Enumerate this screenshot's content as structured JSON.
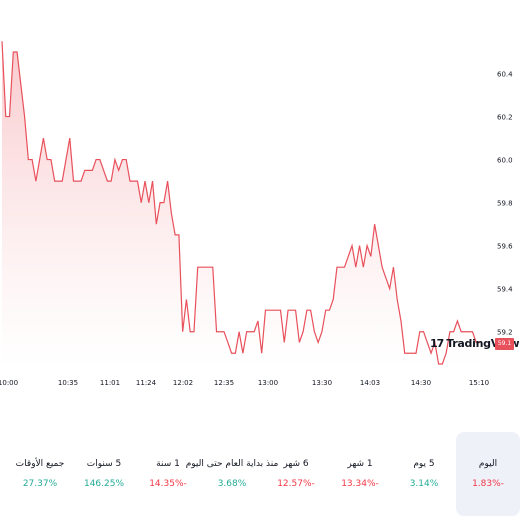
{
  "colors": {
    "line": "#e8505b",
    "fill_top": "#f9c9cc",
    "fill_bottom": "#ffffff",
    "positive": "#22ab94",
    "negative": "#f23645"
  },
  "watermark": {
    "logo": "17",
    "text": "TradingView"
  },
  "last_price_label": "59.1",
  "chart_data": {
    "type": "area",
    "y_ticks": [
      "60.4",
      "60.2",
      "60.0",
      "59.8",
      "59.6",
      "59.4",
      "59.2"
    ],
    "x_ticks": [
      "10:00",
      "10:35",
      "11:01",
      "11:24",
      "12:02",
      "12:35",
      "13:00",
      "13:30",
      "14:03",
      "14:30",
      "15:10"
    ],
    "ylim": [
      59.07,
      60.6
    ],
    "x": [
      0,
      1,
      2,
      3,
      4,
      5,
      6,
      7,
      8,
      9,
      10,
      11,
      12,
      13,
      14,
      15,
      16,
      17,
      18,
      19,
      20,
      21,
      22,
      23,
      24,
      25,
      26,
      27,
      28,
      29,
      30,
      31,
      32,
      33,
      34,
      35,
      36,
      37,
      38,
      39,
      40,
      41,
      42,
      43,
      44,
      45,
      46,
      47,
      48,
      49,
      50,
      51,
      52,
      53,
      54,
      55,
      56,
      57,
      58,
      59,
      60,
      61,
      62,
      63,
      64,
      65,
      66,
      67,
      68,
      69,
      70,
      71,
      72,
      73,
      74,
      75,
      76,
      77,
      78,
      79,
      80,
      81,
      82,
      83,
      84,
      85,
      86,
      87,
      88,
      89,
      90,
      91,
      92,
      93,
      94,
      95,
      96,
      97,
      98,
      99,
      100,
      101,
      102,
      103,
      104,
      105,
      106,
      107,
      108,
      109,
      110,
      111,
      112,
      113,
      114,
      115,
      116,
      117,
      118,
      119,
      120,
      121,
      122,
      123,
      124,
      125,
      126,
      127
    ],
    "values": [
      60.55,
      60.2,
      60.2,
      60.5,
      60.5,
      60.35,
      60.2,
      60.0,
      60.0,
      59.9,
      60.0,
      60.1,
      60.0,
      60.0,
      59.9,
      59.9,
      59.9,
      60.0,
      60.1,
      59.9,
      59.9,
      59.9,
      59.95,
      59.95,
      59.95,
      60.0,
      60.0,
      59.95,
      59.9,
      59.9,
      60.0,
      59.95,
      60.0,
      60.0,
      59.9,
      59.9,
      59.9,
      59.8,
      59.9,
      59.8,
      59.9,
      59.7,
      59.8,
      59.8,
      59.9,
      59.75,
      59.65,
      59.65,
      59.2,
      59.35,
      59.2,
      59.2,
      59.5,
      59.5,
      59.5,
      59.5,
      59.5,
      59.2,
      59.2,
      59.2,
      59.15,
      59.1,
      59.1,
      59.2,
      59.1,
      59.2,
      59.2,
      59.2,
      59.25,
      59.1,
      59.3,
      59.3,
      59.3,
      59.3,
      59.3,
      59.15,
      59.3,
      59.3,
      59.3,
      59.15,
      59.2,
      59.3,
      59.3,
      59.2,
      59.15,
      59.2,
      59.3,
      59.3,
      59.35,
      59.5,
      59.5,
      59.5,
      59.55,
      59.6,
      59.5,
      59.6,
      59.5,
      59.6,
      59.55,
      59.7,
      59.6,
      59.5,
      59.45,
      59.4,
      59.5,
      59.35,
      59.25,
      59.1,
      59.1,
      59.1,
      59.1,
      59.2,
      59.2,
      59.15,
      59.1,
      59.15,
      59.05,
      59.05,
      59.1,
      59.2,
      59.2,
      59.25,
      59.2,
      59.2,
      59.2,
      59.2,
      59.15,
      59.15
    ]
  },
  "performance": [
    {
      "label": "اليوم",
      "value": "1.83%-",
      "trend": "neg",
      "active": true
    },
    {
      "label": "5 يوم",
      "value": "3.14%",
      "trend": "pos",
      "active": false
    },
    {
      "label": "1 شهر",
      "value": "13.34%-",
      "trend": "neg",
      "active": false
    },
    {
      "label": "6 شهر",
      "value": "12.57%-",
      "trend": "neg",
      "active": false
    },
    {
      "label": "منذ بداية العام حتى اليوم",
      "value": "3.68%",
      "trend": "pos",
      "active": false
    },
    {
      "label": "1 سنة",
      "value": "14.35%-",
      "trend": "neg",
      "active": false
    },
    {
      "label": "5 سنوات",
      "value": "146.25%",
      "trend": "pos",
      "active": false
    },
    {
      "label": "جميع الأوقات",
      "value": "27.37%",
      "trend": "pos",
      "active": false
    }
  ]
}
